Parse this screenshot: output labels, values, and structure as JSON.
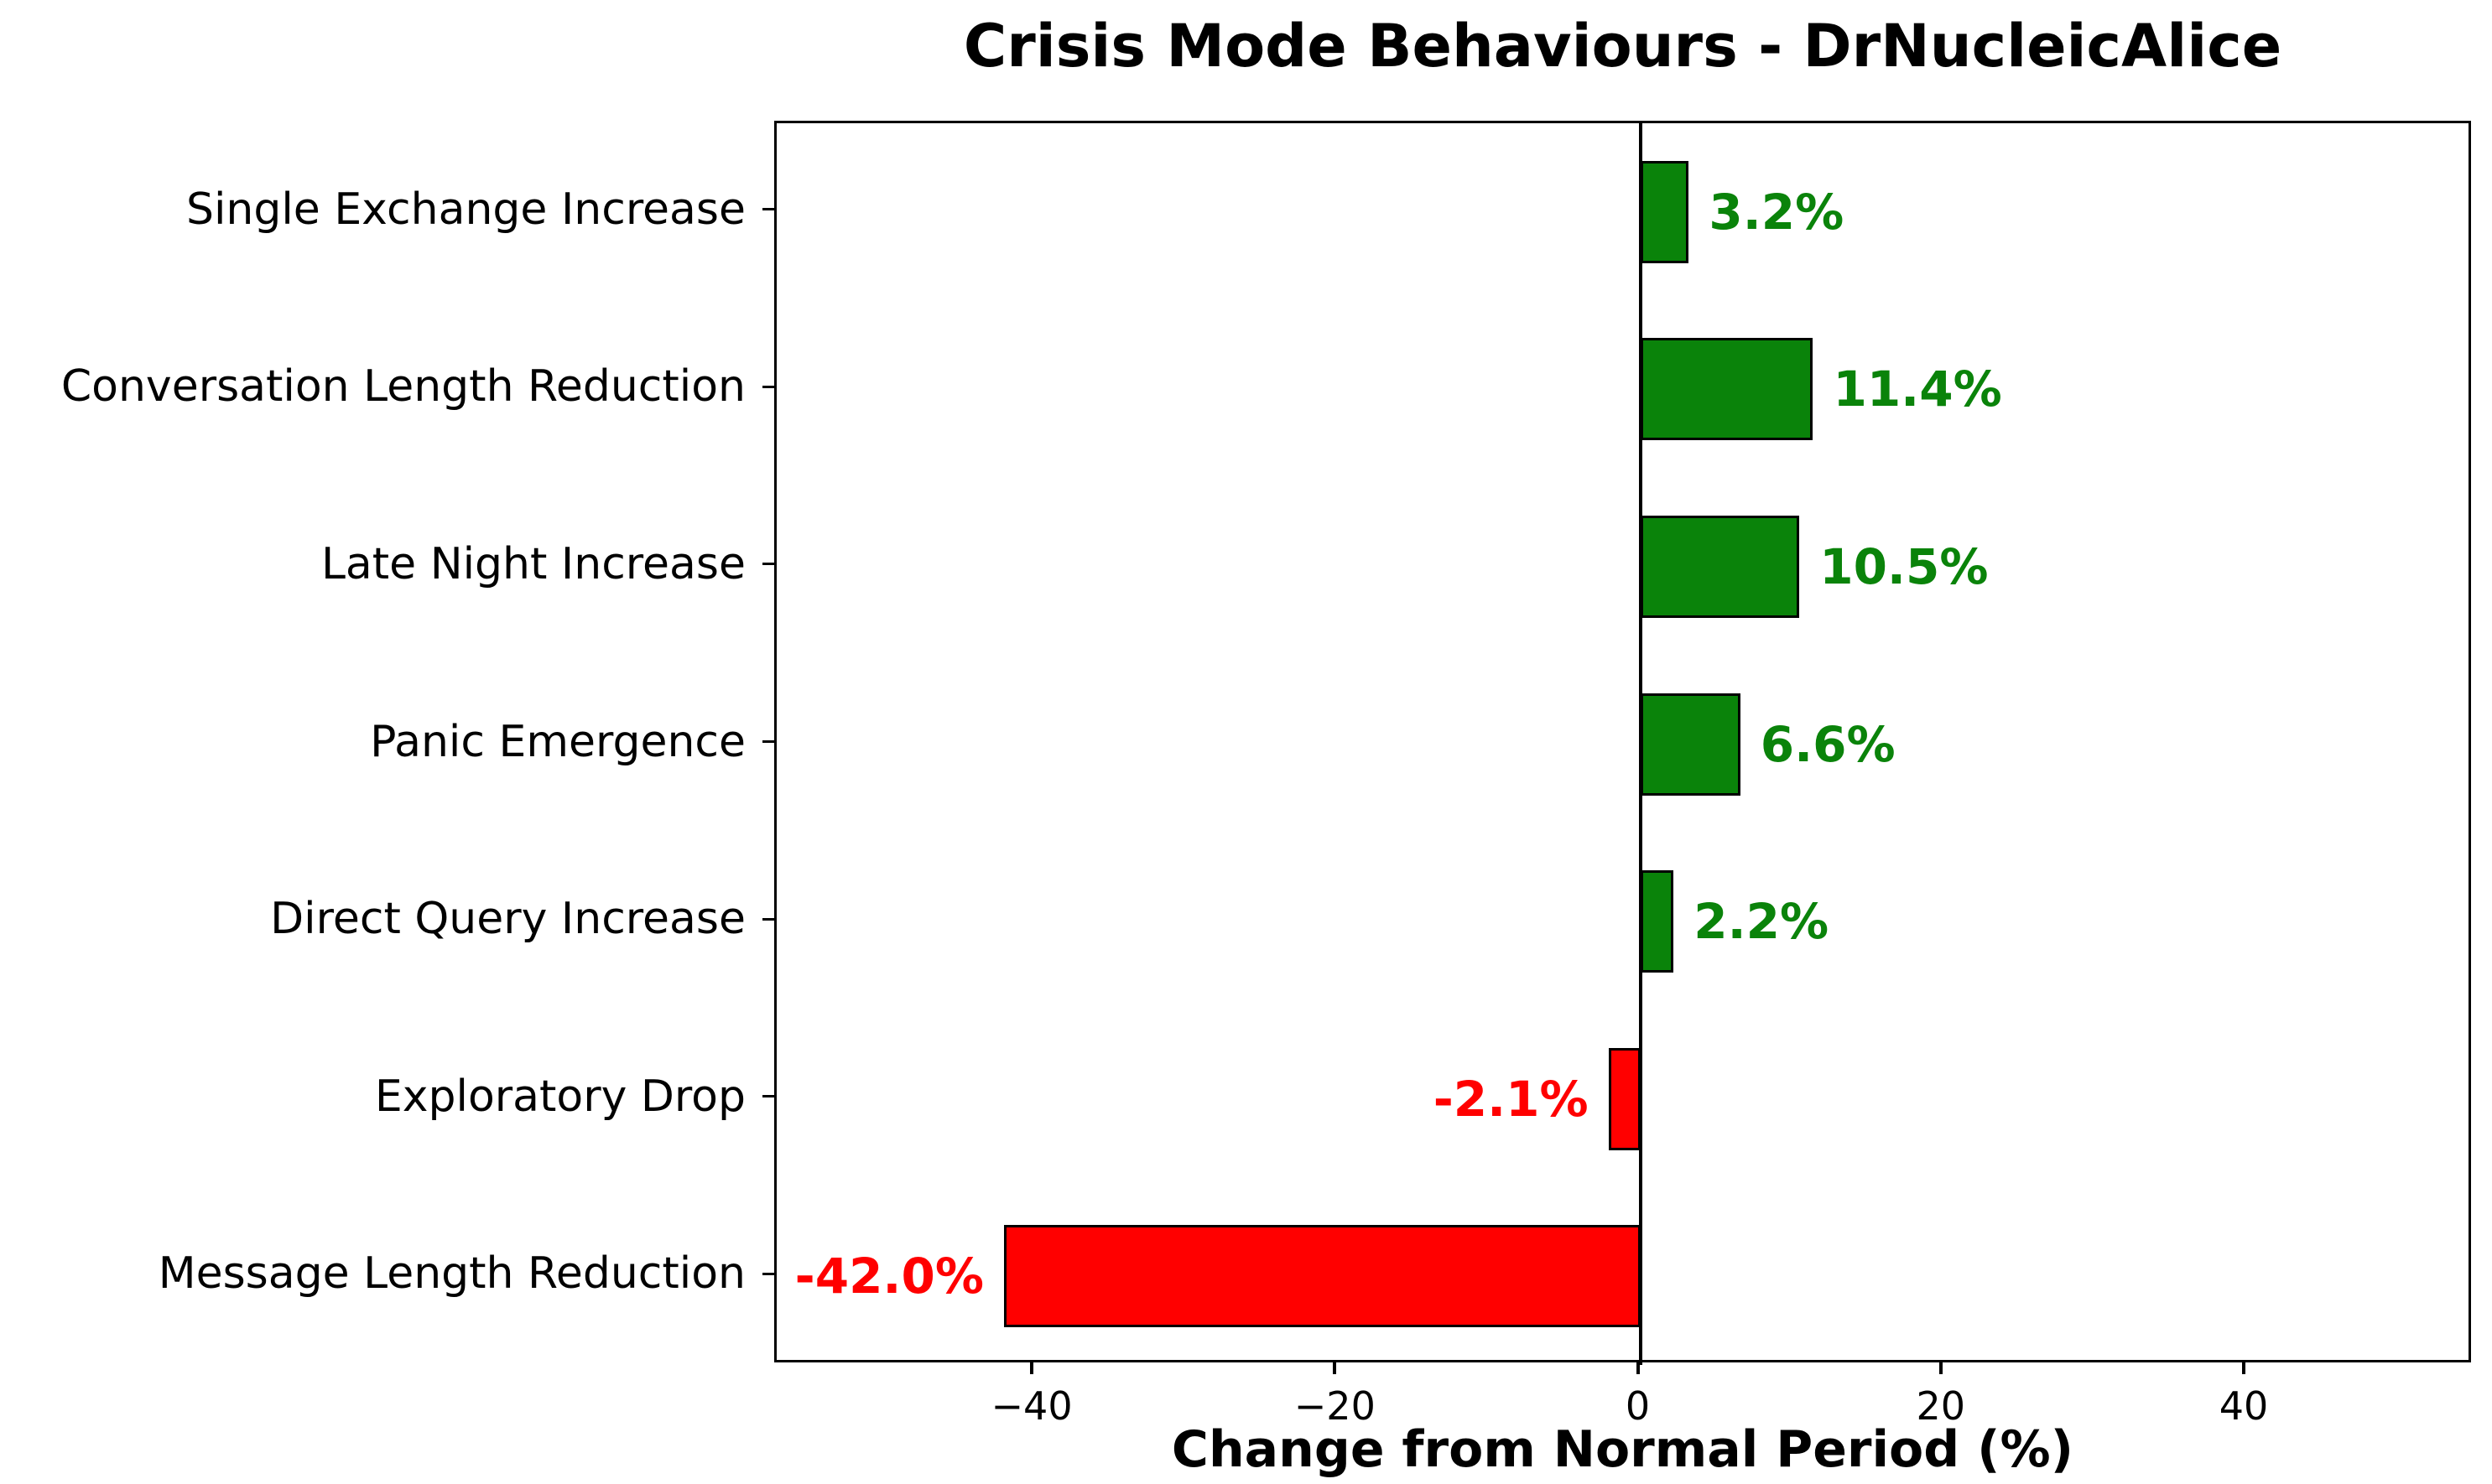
{
  "chart_data": {
    "type": "bar",
    "orientation": "horizontal",
    "title": "Crisis Mode Behaviours - DrNucleicAlice",
    "xlabel": "Change from Normal Period (%)",
    "ylabel": "",
    "categories": [
      "Single Exchange Increase",
      "Conversation Length Reduction",
      "Late Night Increase",
      "Panic Emergence",
      "Direct Query Increase",
      "Exploratory Drop",
      "Message Length Reduction"
    ],
    "values": [
      3.2,
      11.4,
      10.5,
      6.6,
      2.2,
      -2.1,
      -42.0
    ],
    "value_labels": [
      "3.2%",
      "11.4%",
      "10.5%",
      "6.6%",
      "2.2%",
      "-2.1%",
      "-42.0%"
    ],
    "positive_color": "#0a830a",
    "negative_color": "#ff0000",
    "positive_label_color": "#0a830a",
    "negative_label_color": "#ff0000",
    "bar_edge_color": "#000000",
    "xlim": [
      -57,
      55
    ],
    "xticks": [
      {
        "value": -40,
        "label": "−40"
      },
      {
        "value": -20,
        "label": "−20"
      },
      {
        "value": 0,
        "label": "0"
      },
      {
        "value": 20,
        "label": "20"
      },
      {
        "value": 40,
        "label": "40"
      }
    ],
    "grid": false,
    "legend": "none"
  }
}
